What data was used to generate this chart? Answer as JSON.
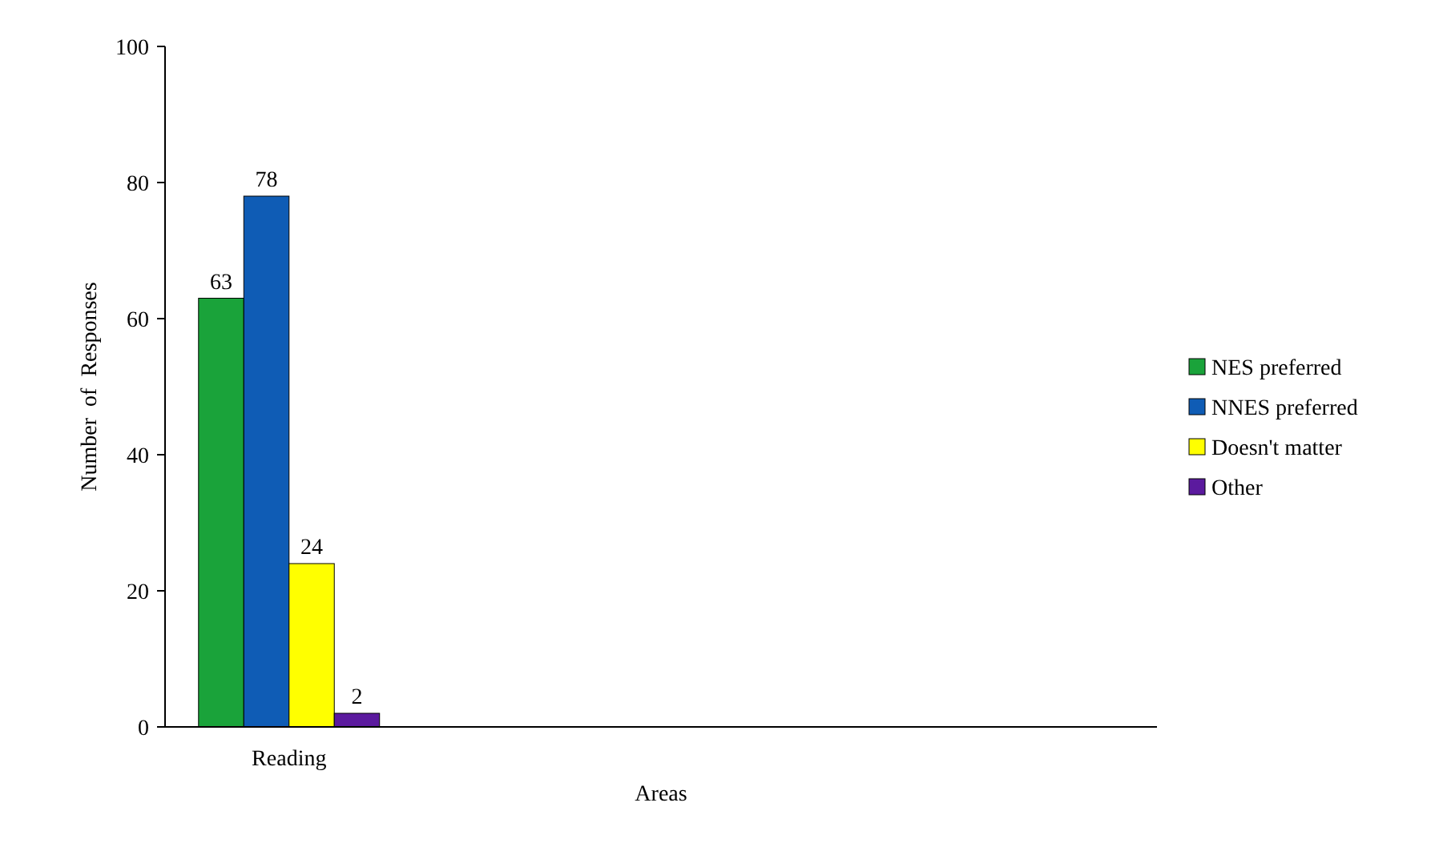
{
  "chart_data": {
    "type": "bar",
    "xlabel": "Areas",
    "ylabel": "Number  of  Responses",
    "categories": [
      "Reading",
      null,
      null,
      null
    ],
    "series": [
      {
        "name": "NES preferred",
        "color": "#1aa33a",
        "values": [
          63,
          null,
          null,
          null
        ]
      },
      {
        "name": "NNES preferred",
        "color": "#0f5cb5",
        "values": [
          78,
          null,
          null,
          null
        ]
      },
      {
        "name": "Doesn't matter",
        "color": "#ffff00",
        "values": [
          24,
          null,
          null,
          null
        ]
      },
      {
        "name": "Other",
        "color": "#5b1a9e",
        "values": [
          2,
          null,
          null,
          null
        ]
      }
    ],
    "ylim": [
      0,
      100
    ],
    "yticks": [
      0,
      20,
      40,
      60,
      80,
      100
    ],
    "data_labels": true,
    "legend": "right",
    "grid": false
  }
}
